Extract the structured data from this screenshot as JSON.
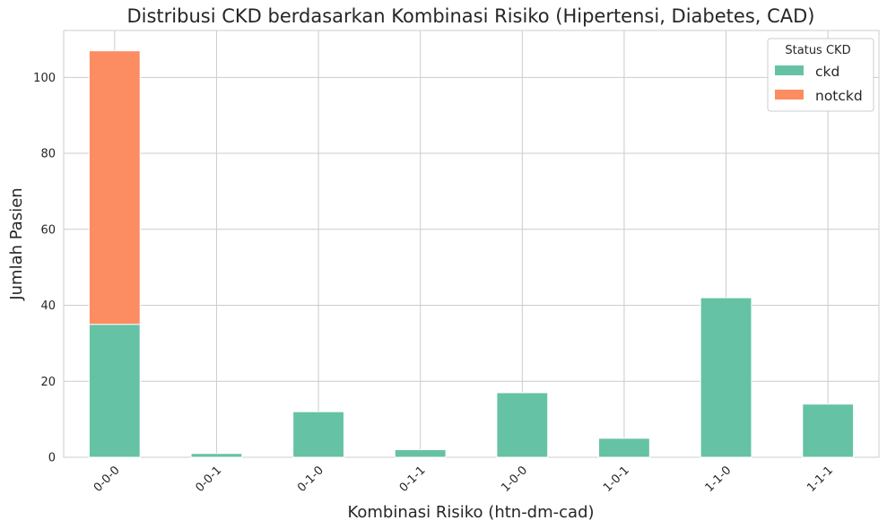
{
  "chart_data": {
    "type": "bar",
    "stacked": true,
    "title": "Distribusi CKD berdasarkan Kombinasi Risiko (Hipertensi, Diabetes, CAD)",
    "xlabel": "Kombinasi Risiko (htn-dm-cad)",
    "ylabel": "Jumlah Pasien",
    "categories": [
      "0-0-0",
      "0-0-1",
      "0-1-0",
      "0-1-1",
      "1-0-0",
      "1-0-1",
      "1-1-0",
      "1-1-1"
    ],
    "series": [
      {
        "name": "ckd",
        "color": "#66c2a5",
        "values": [
          35,
          1,
          12,
          2,
          17,
          5,
          42,
          14
        ]
      },
      {
        "name": "notckd",
        "color": "#fc8d62",
        "values": [
          72,
          0,
          0,
          0,
          0,
          0,
          0,
          0
        ]
      }
    ],
    "ylim": [
      0,
      112.35
    ],
    "yticks": [
      0,
      20,
      40,
      60,
      80,
      100
    ],
    "grid": true,
    "legend": {
      "title": "Status CKD",
      "placement": "top-right"
    }
  }
}
